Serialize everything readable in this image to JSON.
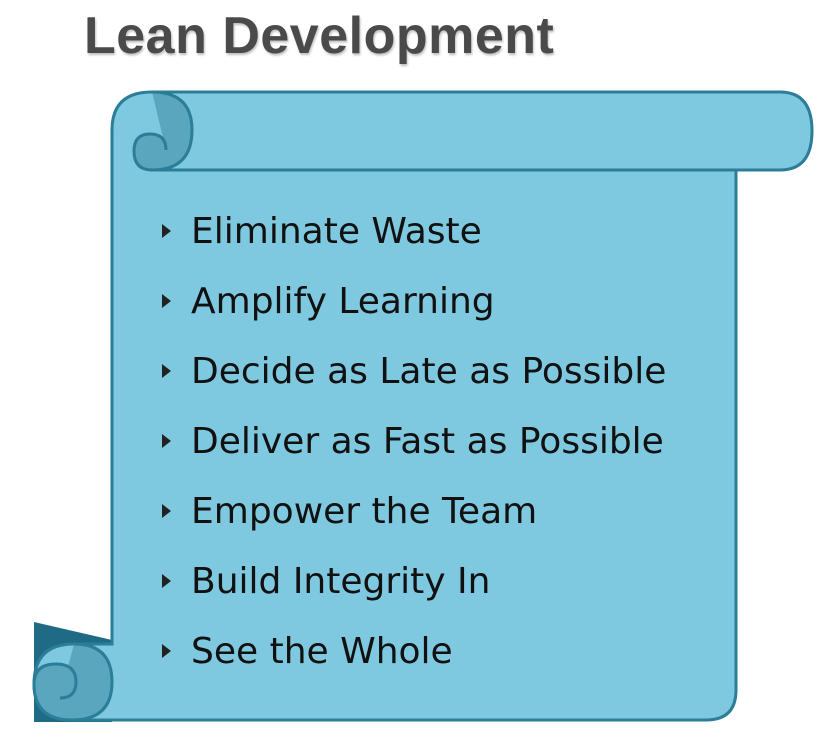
{
  "title": "Lean Development",
  "colors": {
    "scroll_fill": "#7ec8e0",
    "scroll_edge": "#2b7d98",
    "scroll_shadow": "#1f6b86",
    "curl_fill": "#5aa6be",
    "title_text": "#4a4a4a",
    "bullet_text": "#111111"
  },
  "principles": [
    "Eliminate Waste",
    "Amplify Learning",
    "Decide as Late as Possible",
    "Deliver as Fast as Possible",
    "Empower the Team",
    "Build Integrity In",
    "See the Whole"
  ]
}
